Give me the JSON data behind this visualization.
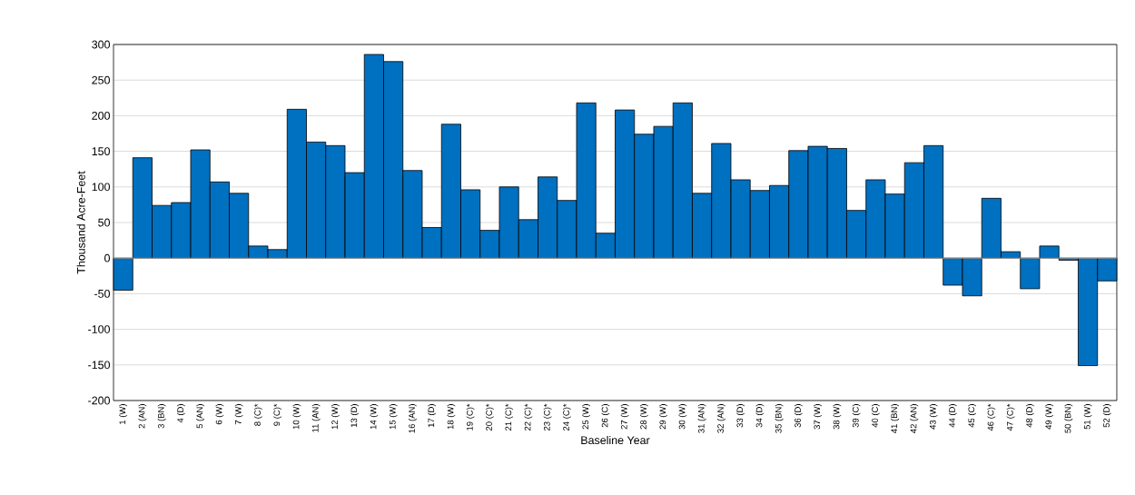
{
  "chart_data": {
    "type": "bar",
    "xlabel": "Baseline Year",
    "ylabel": "Thousand Acre-Feet",
    "categories": [
      "1 (W)",
      "2 (AN)",
      "3 (BN)",
      "4 (D)",
      "5 (AN)",
      "6 (W)",
      "7 (W)",
      "8 (C)*",
      "9 (C)*",
      "10 (W)",
      "11 (AN)",
      "12 (W)",
      "13 (D)",
      "14 (W)",
      "15 (W)",
      "16 (AN)",
      "17 (D)",
      "18 (W)",
      "19 (C)*",
      "20 (C)*",
      "21 (C)*",
      "22 (C)*",
      "23 (C)*",
      "24 (C)*",
      "25 (W)",
      "26 (C)",
      "27 (W)",
      "28 (W)",
      "29 (W)",
      "30 (W)",
      "31 (AN)",
      "32 (AN)",
      "33 (D)",
      "34 (D)",
      "35 (BN)",
      "36 (D)",
      "37 (W)",
      "38 (W)",
      "39 (C)",
      "40 (C)",
      "41 (BN)",
      "42 (AN)",
      "43 (W)",
      "44 (D)",
      "45 (C)",
      "46 (C)*",
      "47 (C)*",
      "48 (D)",
      "49 (W)",
      "50 (BN)",
      "51 (W)",
      "52 (D)"
    ],
    "values": [
      -45,
      141,
      74,
      78,
      152,
      107,
      91,
      17,
      12,
      209,
      163,
      158,
      120,
      286,
      276,
      123,
      43,
      188,
      96,
      39,
      100,
      54,
      114,
      81,
      218,
      35,
      208,
      174,
      185,
      218,
      91,
      161,
      110,
      95,
      102,
      151,
      157,
      154,
      67,
      110,
      90,
      134,
      158,
      -38,
      -53,
      84,
      9,
      -43,
      17,
      -3,
      -151,
      -32
    ],
    "color": "#0070c0",
    "ylim": [
      -200,
      300
    ],
    "yticks": [
      -200,
      -150,
      -100,
      -50,
      0,
      50,
      100,
      150,
      200,
      250,
      300
    ],
    "grid": "y"
  }
}
